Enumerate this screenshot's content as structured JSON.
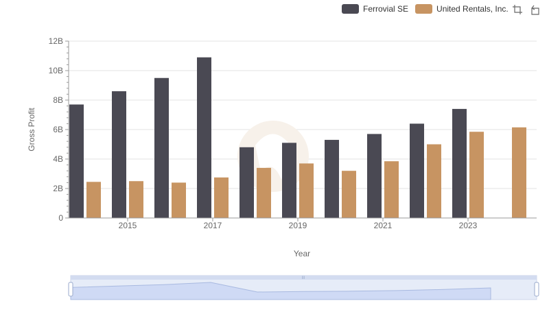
{
  "legend": {
    "items": [
      {
        "label": "Ferrovial SE",
        "color": "#4a4953"
      },
      {
        "label": "United Rentals, Inc.",
        "color": "#c79462"
      }
    ]
  },
  "toolbox": {
    "zoom_icon": "crop-zoom-icon",
    "restore_icon": "zoom-reset-icon"
  },
  "chart_data": {
    "type": "bar",
    "xlabel": "Year",
    "ylabel": "Gross Profit",
    "categories": [
      "2014",
      "2015",
      "2016",
      "2017",
      "2018",
      "2019",
      "2020",
      "2021",
      "2022",
      "2023",
      "2024"
    ],
    "x_tick_labels": [
      "2015",
      "2017",
      "2019",
      "2021",
      "2023"
    ],
    "y_tick_labels": [
      "0",
      "2B",
      "4B",
      "6B",
      "8B",
      "10B",
      "12B"
    ],
    "ylim": [
      0,
      12000000000
    ],
    "grid": true,
    "legend_position": "top-right",
    "series": [
      {
        "name": "Ferrovial SE",
        "color": "#4a4953",
        "values": [
          7700000000,
          8600000000,
          9500000000,
          10900000000,
          4800000000,
          5100000000,
          5300000000,
          5700000000,
          6400000000,
          7400000000,
          null
        ]
      },
      {
        "name": "United Rentals, Inc.",
        "color": "#c79462",
        "values": [
          2450000000,
          2500000000,
          2400000000,
          2750000000,
          3400000000,
          3700000000,
          3200000000,
          3850000000,
          5000000000,
          5850000000,
          6150000000
        ]
      }
    ]
  }
}
